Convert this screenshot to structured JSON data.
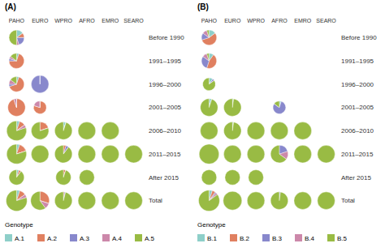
{
  "chart_data": [
    {
      "type": "pie",
      "title": "(A)",
      "categories": [
        "PAHO",
        "EURO",
        "WPRO",
        "AFRO",
        "EMRO",
        "SEARO"
      ],
      "rows": [
        "Before 1990",
        "1991–1995",
        "1996–2000",
        "2001–2005",
        "2006–2010",
        "2011–2015",
        "After 2015",
        "Total"
      ],
      "legend_title": "Genotype",
      "series": [
        {
          "name": "A.1",
          "color": "#8ecfc9"
        },
        {
          "name": "A.2",
          "color": "#e08060"
        },
        {
          "name": "A.3",
          "color": "#8888cc"
        },
        {
          "name": "A.4",
          "color": "#cc88aa"
        },
        {
          "name": "A.5",
          "color": "#99bb44"
        }
      ],
      "values": [
        [
          [
            0.15,
            0.1,
            0.2,
            0.05,
            0.5
          ],
          null,
          null,
          null,
          null,
          null
        ],
        [
          [
            0.05,
            0.7,
            0.05,
            0.05,
            0.15
          ],
          null,
          null,
          null,
          null,
          null
        ],
        [
          [
            0.05,
            0.65,
            0.05,
            0.1,
            0.15
          ],
          [
            0,
            0,
            1.0,
            0,
            0
          ],
          null,
          null,
          null,
          null
        ],
        [
          [
            0,
            0.95,
            0,
            0.05,
            0
          ],
          [
            0,
            0.8,
            0,
            0.2,
            0
          ],
          null,
          null,
          null,
          null
        ],
        [
          [
            0.05,
            0.1,
            0,
            0.05,
            0.8
          ],
          [
            0,
            0.2,
            0,
            0,
            0.8
          ],
          [
            0.05,
            0,
            0,
            0,
            0.95
          ],
          [
            0,
            0,
            0,
            0,
            1.0
          ],
          [
            0,
            0,
            0,
            0,
            1.0
          ],
          null
        ],
        [
          [
            0.05,
            0.15,
            0,
            0,
            0.8
          ],
          [
            0,
            0,
            0,
            0,
            1.0
          ],
          [
            0,
            0.05,
            0.05,
            0,
            0.9
          ],
          [
            0,
            0,
            0,
            0,
            1.0
          ],
          [
            0,
            0,
            0,
            0,
            1.0
          ],
          [
            0,
            0,
            0,
            0,
            1.0
          ]
        ],
        [
          [
            0.05,
            0.05,
            0,
            0,
            0.9
          ],
          null,
          [
            0,
            0.05,
            0,
            0,
            0.95
          ],
          [
            0,
            0,
            0,
            0,
            1.0
          ],
          null,
          null
        ],
        [
          [
            0.05,
            0.1,
            0,
            0.05,
            0.8
          ],
          [
            0,
            0.3,
            0,
            0.1,
            0.6
          ],
          [
            0,
            0.02,
            0.02,
            0,
            0.96
          ],
          [
            0,
            0,
            0,
            0,
            1.0
          ],
          [
            0,
            0,
            0,
            0,
            1.0
          ],
          [
            0,
            0,
            0,
            0,
            1.0
          ]
        ]
      ],
      "sizes": [
        [
          0.65,
          null,
          null,
          null,
          null,
          null
        ],
        [
          0.65,
          null,
          null,
          null,
          null,
          null
        ],
        [
          0.65,
          0.75,
          null,
          null,
          null,
          null
        ],
        [
          0.75,
          0.55,
          null,
          null,
          null,
          null
        ],
        [
          0.85,
          0.75,
          0.75,
          0.75,
          0.75,
          null
        ],
        [
          0.85,
          0.75,
          0.75,
          0.75,
          0.75,
          0.75
        ],
        [
          0.65,
          null,
          0.65,
          0.65,
          null,
          null
        ],
        [
          0.9,
          0.8,
          0.75,
          0.75,
          0.75,
          0.75
        ]
      ]
    },
    {
      "type": "pie",
      "title": "(B)",
      "categories": [
        "PAHO",
        "EURO",
        "WPRO",
        "AFRO",
        "EMRO",
        "SEARO"
      ],
      "rows": [
        "Before 1990",
        "1991–1995",
        "1996–2000",
        "2001–2005",
        "2006–2010",
        "2011–2015",
        "After 2015",
        "Total"
      ],
      "legend_title": "Genotype",
      "series": [
        {
          "name": "B.1",
          "color": "#8ecfc9"
        },
        {
          "name": "B.2",
          "color": "#e08060"
        },
        {
          "name": "B.3",
          "color": "#8888cc"
        },
        {
          "name": "B.4",
          "color": "#cc88aa"
        },
        {
          "name": "B.5",
          "color": "#99bb44"
        }
      ],
      "values": [
        [
          [
            0.15,
            0.55,
            0.15,
            0.1,
            0.05
          ],
          null,
          null,
          null,
          null,
          null
        ],
        [
          [
            0.1,
            0.45,
            0.3,
            0.1,
            0.05
          ],
          null,
          null,
          null,
          null,
          null
        ],
        [
          [
            0.1,
            0,
            0.05,
            0,
            0.85
          ],
          null,
          null,
          null,
          null,
          null
        ],
        [
          [
            0.05,
            0,
            0,
            0,
            0.95
          ],
          [
            0.02,
            0,
            0,
            0,
            0.98
          ],
          null,
          [
            0.05,
            0,
            0.8,
            0,
            0.15
          ],
          null,
          null
        ],
        [
          [
            0,
            0,
            0,
            0,
            1.0
          ],
          [
            0.02,
            0,
            0,
            0,
            0.98
          ],
          [
            0,
            0,
            0,
            0,
            1.0
          ],
          [
            0,
            0,
            0,
            0,
            1.0
          ],
          [
            0,
            0,
            0,
            0,
            1.0
          ],
          null
        ],
        [
          [
            0,
            0,
            0,
            0,
            1.0
          ],
          [
            0,
            0,
            0,
            0,
            1.0
          ],
          [
            0,
            0,
            0,
            0,
            1.0
          ],
          [
            0,
            0,
            0.2,
            0.15,
            0.65
          ],
          [
            0,
            0,
            0,
            0,
            1.0
          ],
          [
            0,
            0,
            0,
            0,
            1.0
          ]
        ],
        [
          [
            0,
            0,
            0,
            0,
            1.0
          ],
          [
            0,
            0,
            0,
            0,
            1.0
          ],
          [
            0,
            0,
            0,
            0,
            1.0
          ],
          null,
          null,
          null
        ],
        [
          [
            0.05,
            0.05,
            0.02,
            0.03,
            0.85
          ],
          [
            0,
            0,
            0,
            0,
            1.0
          ],
          [
            0,
            0,
            0,
            0,
            1.0
          ],
          [
            0,
            0,
            0.02,
            0,
            0.98
          ],
          [
            0,
            0,
            0,
            0,
            1.0
          ],
          [
            0,
            0,
            0,
            0,
            1.0
          ]
        ]
      ],
      "sizes": [
        [
          0.65,
          null,
          null,
          null,
          null,
          null
        ],
        [
          0.65,
          null,
          null,
          null,
          null,
          null
        ],
        [
          0.55,
          null,
          null,
          null,
          null,
          null
        ],
        [
          0.75,
          0.75,
          null,
          0.55,
          null,
          null
        ],
        [
          0.75,
          0.75,
          0.75,
          0.75,
          0.75,
          null
        ],
        [
          0.85,
          0.75,
          0.75,
          0.75,
          0.75,
          0.75
        ],
        [
          0.65,
          0.65,
          0.65,
          null,
          null,
          null
        ],
        [
          0.9,
          0.8,
          0.75,
          0.75,
          0.75,
          0.75
        ]
      ]
    }
  ]
}
